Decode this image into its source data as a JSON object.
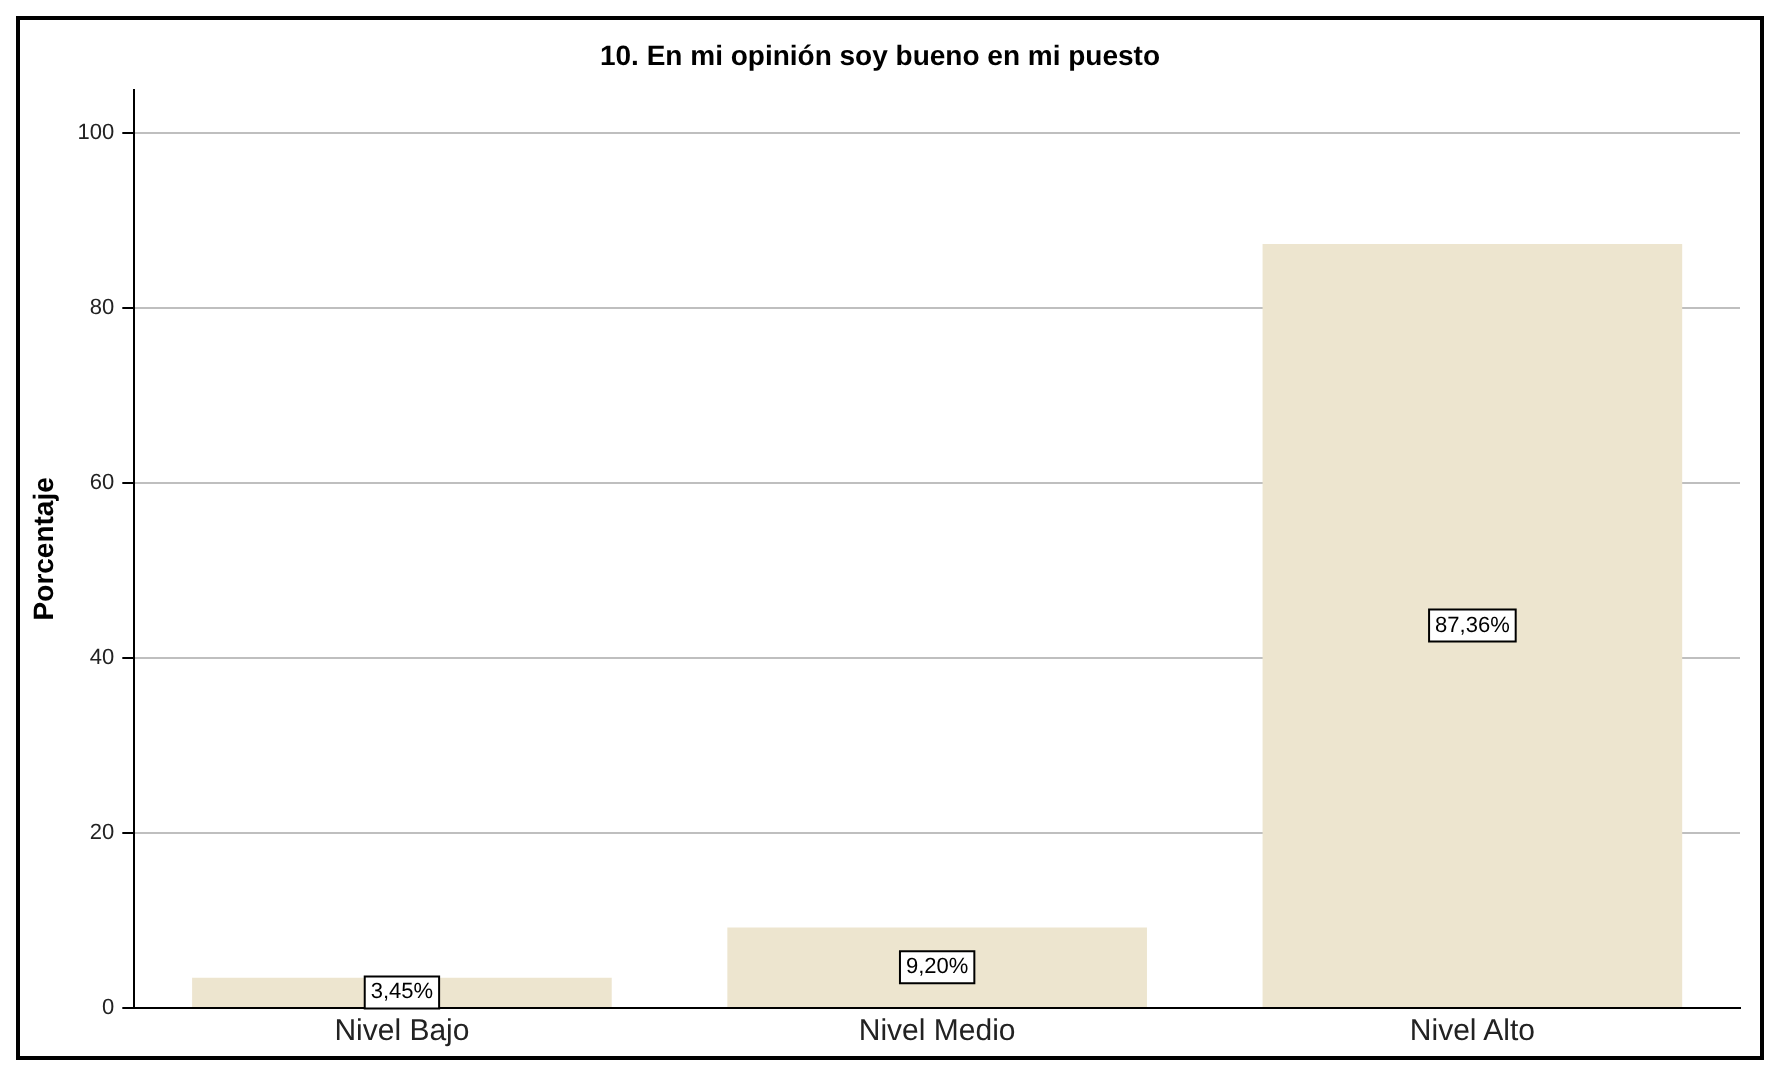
{
  "chart_data": {
    "type": "bar",
    "title": "10. En mi opinión soy bueno en mi puesto",
    "ylabel": "Porcentaje",
    "categories": [
      "Nivel Bajo",
      "Nivel Medio",
      "Nivel Alto"
    ],
    "values": [
      3.45,
      9.2,
      87.36
    ],
    "value_labels": [
      "3,45%",
      "9,20%",
      "87,36%"
    ],
    "color": "#ede5cf",
    "ylim": [
      0,
      105
    ],
    "yticks": [
      0,
      20,
      40,
      60,
      80,
      100
    ],
    "grid": "y",
    "legend": false
  }
}
